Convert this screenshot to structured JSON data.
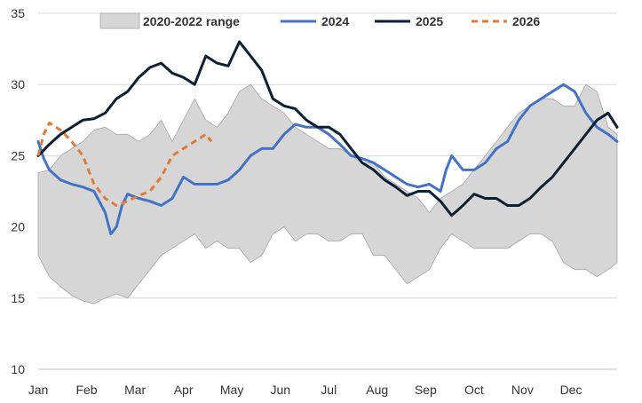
{
  "chart_data": {
    "type": "line",
    "title": "",
    "xlabel": "",
    "ylabel": "",
    "ylim": [
      10,
      35
    ],
    "yticks": [
      10,
      15,
      20,
      25,
      30,
      35
    ],
    "xticks": [
      "Jan",
      "Feb",
      "Mar",
      "Apr",
      "May",
      "Jun",
      "Jul",
      "Aug",
      "Sep",
      "Oct",
      "Nov",
      "Dec"
    ],
    "grid": "horizontal",
    "legend_position": "top",
    "x_unit": "week of year (1-52)",
    "band": {
      "name": "2020-2022 range",
      "color": "#d6d6d6",
      "x": [
        1,
        2,
        3,
        4,
        5,
        6,
        7,
        8,
        9,
        10,
        11,
        12,
        13,
        14,
        15,
        16,
        17,
        18,
        19,
        20,
        21,
        22,
        23,
        24,
        25,
        26,
        27,
        28,
        29,
        30,
        31,
        32,
        33,
        34,
        35,
        36,
        37,
        38,
        39,
        40,
        41,
        42,
        43,
        44,
        45,
        46,
        47,
        48,
        49,
        50,
        51,
        52,
        52.8
      ],
      "upper": [
        23.8,
        24.0,
        25.0,
        25.5,
        26.0,
        26.8,
        27.0,
        26.5,
        26.5,
        26.0,
        26.5,
        27.5,
        26.0,
        27.5,
        29.0,
        27.5,
        27.0,
        28.0,
        29.5,
        30.0,
        29.0,
        28.5,
        28.0,
        27.0,
        26.5,
        26.0,
        25.5,
        25.5,
        25.0,
        24.5,
        24.5,
        23.5,
        23.0,
        22.5,
        22.0,
        21.0,
        22.0,
        22.5,
        23.0,
        24.0,
        25.0,
        26.0,
        27.0,
        28.0,
        28.5,
        29.0,
        29.0,
        28.5,
        28.5,
        30.0,
        29.5,
        27.0,
        26.5
      ],
      "lower": [
        18.0,
        16.5,
        15.8,
        15.2,
        14.8,
        14.6,
        15.0,
        15.3,
        15.0,
        16.0,
        17.0,
        18.0,
        18.5,
        19.0,
        19.5,
        18.5,
        19.0,
        18.5,
        18.5,
        17.5,
        18.0,
        19.5,
        20.0,
        19.0,
        19.5,
        19.5,
        19.0,
        19.0,
        19.5,
        19.5,
        18.0,
        18.0,
        17.0,
        16.0,
        16.5,
        17.0,
        18.5,
        19.5,
        19.0,
        18.5,
        18.5,
        18.5,
        18.5,
        19.0,
        19.5,
        19.5,
        19.0,
        17.5,
        17.0,
        17.0,
        16.5,
        17.0,
        17.5
      ]
    },
    "series": [
      {
        "name": "2024",
        "color": "#4472c4",
        "dash": "solid",
        "x": [
          1,
          1.5,
          2,
          3,
          4,
          5,
          6,
          7,
          7.5,
          8,
          8.5,
          9,
          10,
          11,
          12,
          13,
          14,
          15,
          16,
          17,
          18,
          19,
          20,
          21,
          22,
          23,
          24,
          25,
          26,
          27,
          28,
          29,
          30,
          31,
          32,
          33,
          34,
          35,
          36,
          37,
          37.5,
          38,
          39,
          40,
          41,
          42,
          43,
          44,
          45,
          46,
          47,
          48,
          49,
          50,
          51,
          52,
          52.8
        ],
        "y": [
          26.0,
          24.8,
          24.0,
          23.3,
          23.0,
          22.8,
          22.5,
          21.0,
          19.5,
          20.0,
          21.5,
          22.3,
          22.0,
          21.8,
          21.5,
          22.0,
          23.5,
          23.0,
          23.0,
          23.0,
          23.3,
          24.0,
          25.0,
          25.5,
          25.5,
          26.5,
          27.2,
          27.0,
          27.0,
          26.5,
          25.8,
          25.0,
          24.8,
          24.5,
          24.0,
          23.5,
          23.0,
          22.8,
          23.0,
          22.5,
          24.0,
          25.0,
          24.0,
          24.0,
          24.5,
          25.5,
          26.0,
          27.5,
          28.5,
          29.0,
          29.5,
          30.0,
          29.5,
          28.0,
          27.0,
          26.5,
          26.0
        ]
      },
      {
        "name": "2025",
        "color": "#0d1f33",
        "dash": "solid",
        "x": [
          1,
          2,
          3,
          4,
          5,
          6,
          7,
          8,
          9,
          10,
          11,
          12,
          13,
          14,
          15,
          16,
          17,
          18,
          19,
          20,
          21,
          22,
          23,
          24,
          25,
          26,
          27,
          28,
          29,
          30,
          31,
          32,
          33,
          34,
          35,
          36,
          37,
          38,
          39,
          40,
          41,
          42,
          43,
          44,
          45,
          46,
          47,
          48,
          49,
          50,
          51,
          52,
          52.8
        ],
        "y": [
          25.0,
          25.8,
          26.5,
          27.0,
          27.5,
          27.6,
          28.0,
          29.0,
          29.5,
          30.5,
          31.2,
          31.5,
          30.8,
          30.5,
          30.0,
          32.0,
          31.5,
          31.3,
          33.0,
          32.0,
          31.0,
          29.0,
          28.5,
          28.3,
          27.5,
          27.0,
          27.0,
          26.5,
          25.5,
          24.5,
          24.0,
          23.3,
          22.8,
          22.2,
          22.5,
          22.5,
          21.8,
          20.8,
          21.5,
          22.3,
          22.0,
          22.0,
          21.5,
          21.5,
          22.0,
          22.8,
          23.5,
          24.5,
          25.5,
          26.5,
          27.5,
          28.0,
          27.0
        ]
      },
      {
        "name": "2026",
        "color": "#e07b39",
        "dash": "dashed",
        "x": [
          1,
          1.5,
          2,
          3,
          4,
          5,
          6,
          7,
          8,
          9,
          10,
          11,
          12,
          13,
          14,
          15,
          16,
          16.5
        ],
        "y": [
          25.0,
          26.5,
          27.3,
          26.8,
          26.0,
          25.0,
          23.0,
          22.0,
          21.5,
          21.8,
          22.2,
          22.5,
          23.5,
          25.0,
          25.5,
          26.0,
          26.5,
          26.0
        ]
      }
    ]
  }
}
